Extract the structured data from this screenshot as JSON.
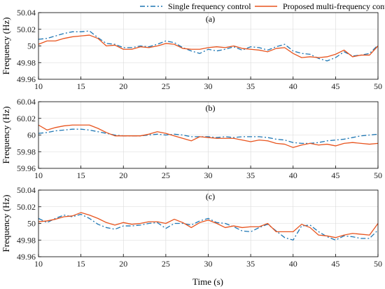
{
  "chart_data": [
    {
      "type": "line",
      "panel_label": "(a)",
      "ylabel": "Frequency (Hz)",
      "xlim": [
        10,
        50
      ],
      "ylim": [
        49.96,
        50.04
      ],
      "xticks": [
        "10",
        "15",
        "20",
        "25",
        "30",
        "35",
        "40",
        "45",
        "50"
      ],
      "yticks": [
        "49.96",
        "49.98",
        "50",
        "50.02",
        "50.04"
      ],
      "grid": true,
      "x": [
        10,
        11,
        12,
        13,
        14,
        15,
        16,
        17,
        18,
        19,
        20,
        21,
        22,
        23,
        24,
        25,
        26,
        27,
        28,
        29,
        30,
        31,
        32,
        33,
        34,
        35,
        36,
        37,
        38,
        39,
        40,
        41,
        42,
        43,
        44,
        45,
        46,
        47,
        48,
        49,
        50
      ],
      "series": [
        {
          "name": "Single frequency control",
          "color": "#1f77b4",
          "dash": "dashdot",
          "values": [
            50.008,
            50.009,
            50.012,
            50.015,
            50.017,
            50.017,
            50.018,
            50.01,
            50.003,
            50.002,
            49.998,
            49.998,
            50.0,
            49.999,
            50.002,
            50.006,
            50.004,
            49.998,
            49.994,
            49.991,
            49.996,
            49.994,
            49.996,
            49.999,
            49.995,
            49.999,
            49.998,
            49.995,
            49.999,
            50.002,
            49.994,
            49.991,
            49.99,
            49.985,
            49.982,
            49.986,
            49.993,
            49.988,
            49.989,
            49.991,
            50.001
          ]
        },
        {
          "name": "Proposed multi-frequency control",
          "color": "#e8541e",
          "dash": "solid",
          "values": [
            50.002,
            50.006,
            50.006,
            50.009,
            50.011,
            50.012,
            50.013,
            50.009,
            50.0,
            50.001,
            49.996,
            49.996,
            49.999,
            49.998,
            50.0,
            50.003,
            50.002,
            49.997,
            49.996,
            49.996,
            49.998,
            49.999,
            49.998,
            50.0,
            49.997,
            49.996,
            49.995,
            49.993,
            49.997,
            49.998,
            49.991,
            49.986,
            49.987,
            49.986,
            49.987,
            49.99,
            49.995,
            49.987,
            49.989,
            49.989,
            50.0
          ]
        }
      ]
    },
    {
      "type": "line",
      "panel_label": "(b)",
      "ylabel": "Frequency (Hz)",
      "xlim": [
        10,
        50
      ],
      "ylim": [
        59.96,
        60.04
      ],
      "xticks": [
        "10",
        "15",
        "20",
        "25",
        "30",
        "35",
        "40",
        "45",
        "50"
      ],
      "yticks": [
        "59.96",
        "59.98",
        "60",
        "60.02",
        "60.04"
      ],
      "grid": true,
      "x": [
        10,
        11,
        12,
        13,
        14,
        15,
        16,
        17,
        18,
        19,
        20,
        21,
        22,
        23,
        24,
        25,
        26,
        27,
        28,
        29,
        30,
        31,
        32,
        33,
        34,
        35,
        36,
        37,
        38,
        39,
        40,
        41,
        42,
        43,
        44,
        45,
        46,
        47,
        48,
        49,
        50
      ],
      "series": [
        {
          "name": "Single frequency control",
          "color": "#1f77b4",
          "dash": "dashdot",
          "values": [
            60.002,
            60.003,
            60.005,
            60.006,
            60.007,
            60.007,
            60.006,
            60.004,
            60.002,
            60.0,
            59.999,
            59.999,
            59.999,
            60.0,
            60.001,
            60.0,
            60.001,
            60.0,
            59.998,
            59.998,
            59.998,
            59.997,
            59.998,
            59.997,
            59.998,
            59.998,
            59.998,
            59.997,
            59.995,
            59.994,
            59.991,
            59.99,
            59.99,
            59.991,
            59.993,
            59.994,
            59.995,
            59.997,
            59.999,
            60.0,
            60.001
          ]
        },
        {
          "name": "Proposed multi-frequency control",
          "color": "#e8541e",
          "dash": "solid",
          "values": [
            60.012,
            60.006,
            60.009,
            60.011,
            60.012,
            60.012,
            60.012,
            60.008,
            60.003,
            59.999,
            59.999,
            59.999,
            59.999,
            60.001,
            60.004,
            60.002,
            59.999,
            59.996,
            59.993,
            59.998,
            59.997,
            59.996,
            59.996,
            59.996,
            59.994,
            59.992,
            59.994,
            59.993,
            59.99,
            59.989,
            59.985,
            59.988,
            59.99,
            59.988,
            59.989,
            59.987,
            59.99,
            59.991,
            59.99,
            59.989,
            59.99
          ]
        }
      ]
    },
    {
      "type": "line",
      "panel_label": "(c)",
      "xlabel": "Time (s)",
      "ylabel": "Frequency (Hz)",
      "xlim": [
        10,
        50
      ],
      "ylim": [
        49.96,
        50.04
      ],
      "xticks": [
        "10",
        "15",
        "20",
        "25",
        "30",
        "35",
        "40",
        "45",
        "50"
      ],
      "yticks": [
        "49.96",
        "49.98",
        "50",
        "50.02",
        "50.04"
      ],
      "grid": true,
      "x": [
        10,
        11,
        12,
        13,
        14,
        15,
        16,
        17,
        18,
        19,
        20,
        21,
        22,
        23,
        24,
        25,
        26,
        27,
        28,
        29,
        30,
        31,
        32,
        33,
        34,
        35,
        36,
        37,
        38,
        39,
        40,
        41,
        42,
        43,
        44,
        45,
        46,
        47,
        48,
        49,
        50
      ],
      "series": [
        {
          "name": "Single frequency control",
          "color": "#1f77b4",
          "dash": "dashdot",
          "values": [
            50.006,
            50.001,
            50.006,
            50.01,
            50.008,
            50.011,
            50.006,
            49.999,
            49.995,
            49.993,
            49.997,
            49.997,
            49.998,
            50.0,
            50.001,
            49.994,
            50.0,
            50.0,
            49.998,
            50.003,
            50.006,
            50.001,
            50.0,
            49.996,
            49.991,
            49.99,
            49.995,
            49.999,
            49.991,
            49.983,
            49.98,
            49.997,
            49.998,
            49.99,
            49.984,
            49.98,
            49.985,
            49.984,
            49.982,
            49.982,
            49.992
          ]
        },
        {
          "name": "Proposed multi-frequency control",
          "color": "#e8541e",
          "dash": "solid",
          "values": [
            50.002,
            50.003,
            50.005,
            50.008,
            50.009,
            50.013,
            50.01,
            50.006,
            50.001,
            49.998,
            50.001,
            49.999,
            50.0,
            50.002,
            50.002,
            50.0,
            50.005,
            50.001,
            49.995,
            50.001,
            50.004,
            50.0,
            49.995,
            49.997,
            49.995,
            49.996,
            49.996,
            50.0,
            49.99,
            49.99,
            49.99,
            49.999,
            49.995,
            49.986,
            49.985,
            49.983,
            49.986,
            49.988,
            49.987,
            49.986,
            50.0
          ]
        }
      ]
    }
  ],
  "legend": {
    "items": [
      {
        "label": "Single frequency control",
        "color": "#1f77b4",
        "dash": "dashdot"
      },
      {
        "label": "Proposed multi-frequency control",
        "color": "#e8541e",
        "dash": "solid"
      }
    ]
  }
}
